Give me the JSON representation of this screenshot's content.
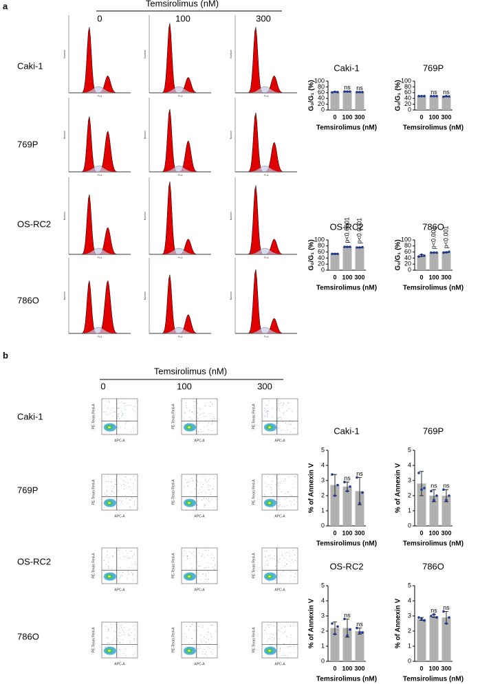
{
  "panel_a": {
    "label": "a",
    "treatment_header": "Temsirolimus (nM)",
    "doses": [
      "0",
      "100",
      "300"
    ],
    "cell_lines": [
      "Caki-1",
      "769P",
      "OS-RC2",
      "786O"
    ],
    "histogram_axis_labels": {
      "x": "PI-A",
      "y": "Number"
    }
  },
  "panel_b": {
    "label": "b",
    "treatment_header": "Temsirolimus (nM)",
    "doses": [
      "0",
      "100",
      "300"
    ],
    "cell_lines": [
      "Caki-1",
      "769P",
      "OS-RC2",
      "786O"
    ],
    "flow_axis_labels": {
      "x": "APC-A",
      "y": "PE-Texas Red-A"
    }
  },
  "chart_data": [
    {
      "type": "bar",
      "title": "Caki-1",
      "ylabel": "G₀/G₁ (%)",
      "xlabel": "Temsirolimus (nM)",
      "categories": [
        "0",
        "100",
        "300"
      ],
      "values": [
        62,
        64,
        62
      ],
      "errors": [
        1,
        1,
        1
      ],
      "points": [
        [
          61,
          63,
          62
        ],
        [
          64,
          64,
          64
        ],
        [
          62,
          62,
          62
        ]
      ],
      "color": "#b0b0b0",
      "point_color": "#1f3a93",
      "ylim": [
        0,
        100
      ],
      "yticks": [
        0,
        20,
        40,
        60,
        80,
        100
      ],
      "annotations": [
        {
          "category": "100",
          "text": "ns"
        },
        {
          "category": "300",
          "text": "ns"
        }
      ]
    },
    {
      "type": "bar",
      "title": "769P",
      "ylabel": "G₀/G₁ (%)",
      "xlabel": "Temsirolimus (nM)",
      "categories": [
        "0",
        "100",
        "300"
      ],
      "values": [
        48,
        48,
        47
      ],
      "errors": [
        0.5,
        0.5,
        1
      ],
      "points": [
        [
          48,
          48,
          48
        ],
        [
          48,
          48,
          48
        ],
        [
          46,
          48,
          47
        ]
      ],
      "color": "#b0b0b0",
      "point_color": "#1f3a93",
      "ylim": [
        0,
        100
      ],
      "yticks": [
        0,
        20,
        40,
        60,
        80,
        100
      ],
      "annotations": [
        {
          "category": "100",
          "text": "ns"
        },
        {
          "category": "300",
          "text": "ns"
        }
      ]
    },
    {
      "type": "bar",
      "title": "OS-RC2",
      "ylabel": "G₀/G₁ (%)",
      "xlabel": "Temsirolimus (nM)",
      "categories": [
        "0",
        "100",
        "300"
      ],
      "values": [
        54,
        77,
        75
      ],
      "errors": [
        1,
        1,
        1
      ],
      "points": [
        [
          54,
          54,
          54
        ],
        [
          77,
          77,
          77
        ],
        [
          75,
          75,
          76
        ]
      ],
      "color": "#b0b0b0",
      "point_color": "#1f3a93",
      "ylim": [
        0,
        100
      ],
      "yticks": [
        0,
        20,
        40,
        60,
        80,
        100
      ],
      "annotations": [
        {
          "category": "100",
          "text": "p<0.0001"
        },
        {
          "category": "300",
          "text": "p<0.0001"
        }
      ]
    },
    {
      "type": "bar",
      "title": "786O",
      "ylabel": "G₀/G₁ (%)",
      "xlabel": "Temsirolimus (nM)",
      "categories": [
        "0",
        "100",
        "300"
      ],
      "values": [
        48,
        58,
        59
      ],
      "errors": [
        3,
        0.5,
        1.5
      ],
      "points": [
        [
          45,
          51,
          48
        ],
        [
          58,
          58,
          58
        ],
        [
          58,
          59,
          61
        ]
      ],
      "color": "#b0b0b0",
      "point_color": "#1f3a93",
      "ylim": [
        0,
        100
      ],
      "yticks": [
        0,
        20,
        40,
        60,
        80,
        100
      ],
      "annotations": [
        {
          "category": "100",
          "text": "p<0.001"
        },
        {
          "category": "300",
          "text": "p<0.001"
        }
      ]
    },
    {
      "type": "bar",
      "title": "Caki-1",
      "ylabel": "% of Annexin V",
      "xlabel": "Temsirolimus (nM)",
      "categories": [
        "0",
        "100",
        "300"
      ],
      "values": [
        2.7,
        2.6,
        2.3
      ],
      "errors": [
        0.7,
        0.3,
        0.9
      ],
      "points": [
        [
          3.4,
          2.0,
          2.7
        ],
        [
          2.9,
          2.3,
          2.6
        ],
        [
          3.2,
          1.5,
          2.2
        ]
      ],
      "color": "#b0b0b0",
      "point_color": "#1f3a93",
      "ylim": [
        0,
        5
      ],
      "yticks": [
        0,
        1,
        2,
        3,
        4,
        5
      ],
      "annotations": [
        {
          "category": "100",
          "text": "ns"
        },
        {
          "category": "300",
          "text": "ns"
        }
      ]
    },
    {
      "type": "bar",
      "title": "769P",
      "ylabel": "% of Annexin V",
      "xlabel": "Temsirolimus (nM)",
      "categories": [
        "0",
        "100",
        "300"
      ],
      "values": [
        2.8,
        2.0,
        2.0
      ],
      "errors": [
        0.8,
        0.4,
        0.4
      ],
      "points": [
        [
          3.5,
          2.4,
          2.5
        ],
        [
          2.3,
          1.7,
          2.0
        ],
        [
          2.4,
          1.7,
          2.0
        ]
      ],
      "color": "#b0b0b0",
      "point_color": "#1f3a93",
      "ylim": [
        0,
        5
      ],
      "yticks": [
        0,
        1,
        2,
        3,
        4,
        5
      ],
      "annotations": [
        {
          "category": "100",
          "text": "ns"
        },
        {
          "category": "300",
          "text": "ns"
        }
      ]
    },
    {
      "type": "bar",
      "title": "OS-RC2",
      "ylabel": "% of Annexin V",
      "xlabel": "Temsirolimus (nM)",
      "categories": [
        "0",
        "100",
        "300"
      ],
      "values": [
        2.2,
        2.2,
        2.0
      ],
      "errors": [
        0.4,
        0.6,
        0.2
      ],
      "points": [
        [
          2.5,
          1.8,
          2.3
        ],
        [
          2.8,
          1.7,
          2.1
        ],
        [
          2.2,
          1.9,
          1.9
        ]
      ],
      "color": "#b0b0b0",
      "point_color": "#1f3a93",
      "ylim": [
        0,
        5
      ],
      "yticks": [
        0,
        1,
        2,
        3,
        4,
        5
      ],
      "annotations": [
        {
          "category": "100",
          "text": "ns"
        },
        {
          "category": "300",
          "text": "ns"
        }
      ]
    },
    {
      "type": "bar",
      "title": "786O",
      "ylabel": "% of Annexin V",
      "xlabel": "Temsirolimus (nM)",
      "categories": [
        "0",
        "100",
        "300"
      ],
      "values": [
        2.8,
        3.0,
        2.9
      ],
      "errors": [
        0.1,
        0.1,
        0.4
      ],
      "points": [
        [
          2.9,
          2.8,
          2.7
        ],
        [
          3.0,
          3.1,
          2.9
        ],
        [
          3.3,
          2.5,
          2.9
        ]
      ],
      "color": "#b0b0b0",
      "point_color": "#1f3a93",
      "ylim": [
        0,
        5
      ],
      "yticks": [
        0,
        1,
        2,
        3,
        4,
        5
      ],
      "annotations": [
        {
          "category": "100",
          "text": "ns"
        },
        {
          "category": "300",
          "text": "ns"
        }
      ]
    }
  ]
}
